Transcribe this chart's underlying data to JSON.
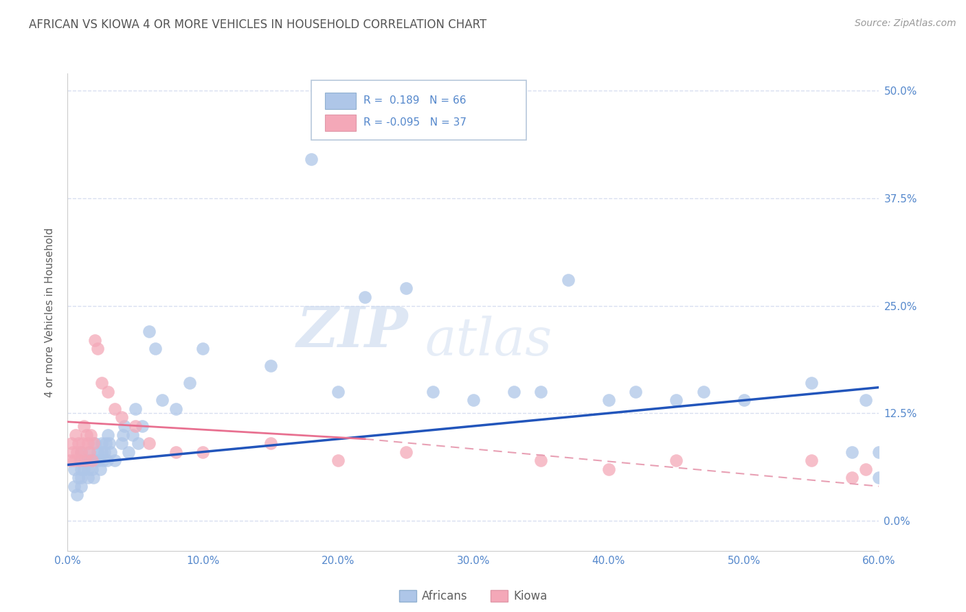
{
  "title": "AFRICAN VS KIOWA 4 OR MORE VEHICLES IN HOUSEHOLD CORRELATION CHART",
  "source": "Source: ZipAtlas.com",
  "ylabel": "4 or more Vehicles in Household",
  "xlim": [
    0.0,
    0.6
  ],
  "ylim": [
    -0.035,
    0.52
  ],
  "african_R": 0.189,
  "african_N": 66,
  "kiowa_R": -0.095,
  "kiowa_N": 37,
  "african_color": "#aec6e8",
  "kiowa_color": "#f4a8b8",
  "african_line_color": "#2255bb",
  "kiowa_solid_color": "#e87090",
  "kiowa_dash_color": "#e8a0b4",
  "title_color": "#555555",
  "source_color": "#999999",
  "axis_label_color": "#606060",
  "tick_color": "#5588cc",
  "grid_color": "#d8dff0",
  "background_color": "#ffffff",
  "african_scatter_x": [
    0.005,
    0.005,
    0.007,
    0.008,
    0.01,
    0.01,
    0.01,
    0.01,
    0.01,
    0.012,
    0.015,
    0.015,
    0.015,
    0.016,
    0.017,
    0.018,
    0.019,
    0.02,
    0.02,
    0.022,
    0.023,
    0.024,
    0.025,
    0.025,
    0.026,
    0.027,
    0.028,
    0.029,
    0.03,
    0.031,
    0.032,
    0.035,
    0.04,
    0.041,
    0.042,
    0.045,
    0.048,
    0.05,
    0.052,
    0.055,
    0.06,
    0.065,
    0.07,
    0.08,
    0.09,
    0.1,
    0.15,
    0.18,
    0.2,
    0.22,
    0.25,
    0.27,
    0.3,
    0.33,
    0.35,
    0.37,
    0.4,
    0.42,
    0.45,
    0.47,
    0.5,
    0.55,
    0.58,
    0.59,
    0.6,
    0.6
  ],
  "african_scatter_y": [
    0.04,
    0.06,
    0.03,
    0.05,
    0.04,
    0.05,
    0.06,
    0.07,
    0.08,
    0.06,
    0.05,
    0.06,
    0.07,
    0.08,
    0.07,
    0.06,
    0.05,
    0.07,
    0.09,
    0.08,
    0.07,
    0.06,
    0.08,
    0.09,
    0.07,
    0.08,
    0.09,
    0.07,
    0.1,
    0.09,
    0.08,
    0.07,
    0.09,
    0.1,
    0.11,
    0.08,
    0.1,
    0.13,
    0.09,
    0.11,
    0.22,
    0.2,
    0.14,
    0.13,
    0.16,
    0.2,
    0.18,
    0.42,
    0.15,
    0.26,
    0.27,
    0.15,
    0.14,
    0.15,
    0.15,
    0.28,
    0.14,
    0.15,
    0.14,
    0.15,
    0.14,
    0.16,
    0.08,
    0.14,
    0.08,
    0.05
  ],
  "kiowa_scatter_x": [
    0.002,
    0.003,
    0.004,
    0.005,
    0.006,
    0.007,
    0.008,
    0.009,
    0.01,
    0.011,
    0.012,
    0.013,
    0.014,
    0.015,
    0.016,
    0.017,
    0.018,
    0.019,
    0.02,
    0.022,
    0.025,
    0.03,
    0.035,
    0.04,
    0.05,
    0.06,
    0.08,
    0.1,
    0.15,
    0.2,
    0.25,
    0.35,
    0.4,
    0.45,
    0.55,
    0.58,
    0.59
  ],
  "kiowa_scatter_y": [
    0.07,
    0.09,
    0.08,
    0.07,
    0.1,
    0.08,
    0.09,
    0.07,
    0.08,
    0.09,
    0.11,
    0.07,
    0.1,
    0.09,
    0.08,
    0.1,
    0.07,
    0.09,
    0.21,
    0.2,
    0.16,
    0.15,
    0.13,
    0.12,
    0.11,
    0.09,
    0.08,
    0.08,
    0.09,
    0.07,
    0.08,
    0.07,
    0.06,
    0.07,
    0.07,
    0.05,
    0.06
  ]
}
